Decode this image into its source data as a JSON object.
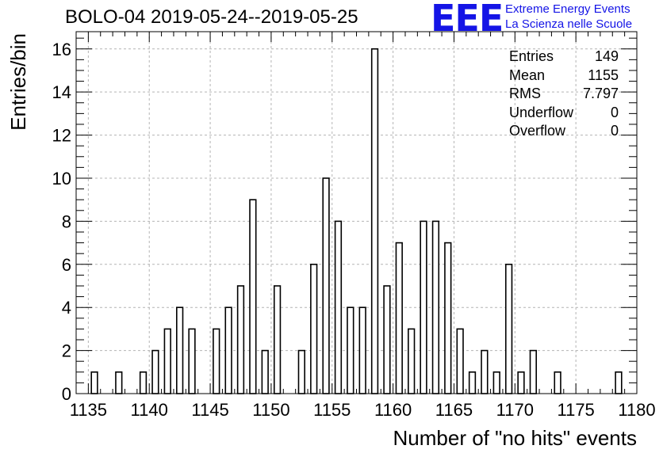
{
  "chart_data": {
    "type": "bar",
    "title": "BOLO-04 2019-05-24--2019-05-25",
    "xlabel": "Number of \"no hits\" events",
    "ylabel": "Entries/bin",
    "xlim": [
      1134,
      1180
    ],
    "ylim": [
      0,
      16.8
    ],
    "bin_width": 1,
    "grid": true,
    "x_ticks": [
      "1135",
      "1140",
      "1145",
      "1150",
      "1155",
      "1160",
      "1165",
      "1170",
      "1175",
      "1180"
    ],
    "y_ticks": [
      "0",
      "2",
      "4",
      "6",
      "8",
      "10",
      "12",
      "14",
      "16"
    ],
    "bins": [
      {
        "x": 1135,
        "y": 1
      },
      {
        "x": 1137,
        "y": 1
      },
      {
        "x": 1139,
        "y": 1
      },
      {
        "x": 1140,
        "y": 2
      },
      {
        "x": 1141,
        "y": 3
      },
      {
        "x": 1142,
        "y": 4
      },
      {
        "x": 1143,
        "y": 3
      },
      {
        "x": 1145,
        "y": 3
      },
      {
        "x": 1146,
        "y": 4
      },
      {
        "x": 1147,
        "y": 5
      },
      {
        "x": 1148,
        "y": 9
      },
      {
        "x": 1149,
        "y": 2
      },
      {
        "x": 1150,
        "y": 5
      },
      {
        "x": 1152,
        "y": 2
      },
      {
        "x": 1153,
        "y": 6
      },
      {
        "x": 1154,
        "y": 10
      },
      {
        "x": 1155,
        "y": 8
      },
      {
        "x": 1156,
        "y": 4
      },
      {
        "x": 1157,
        "y": 4
      },
      {
        "x": 1158,
        "y": 16
      },
      {
        "x": 1159,
        "y": 5
      },
      {
        "x": 1160,
        "y": 7
      },
      {
        "x": 1161,
        "y": 3
      },
      {
        "x": 1162,
        "y": 8
      },
      {
        "x": 1163,
        "y": 8
      },
      {
        "x": 1164,
        "y": 7
      },
      {
        "x": 1165,
        "y": 3
      },
      {
        "x": 1166,
        "y": 1
      },
      {
        "x": 1167,
        "y": 2
      },
      {
        "x": 1168,
        "y": 1
      },
      {
        "x": 1169,
        "y": 6
      },
      {
        "x": 1170,
        "y": 1
      },
      {
        "x": 1171,
        "y": 2
      },
      {
        "x": 1173,
        "y": 1
      },
      {
        "x": 1178,
        "y": 1
      }
    ],
    "stats": [
      {
        "label": "Entries",
        "value": "149"
      },
      {
        "label": "Mean",
        "value": "1155"
      },
      {
        "label": "RMS",
        "value": "7.797"
      },
      {
        "label": "Underflow",
        "value": "0"
      },
      {
        "label": "Overflow",
        "value": "0"
      }
    ]
  },
  "logo": {
    "mark": "EEE",
    "line1": "Extreme Energy Events",
    "line2": "La Scienza nelle Scuole",
    "color": "#1414e6"
  }
}
